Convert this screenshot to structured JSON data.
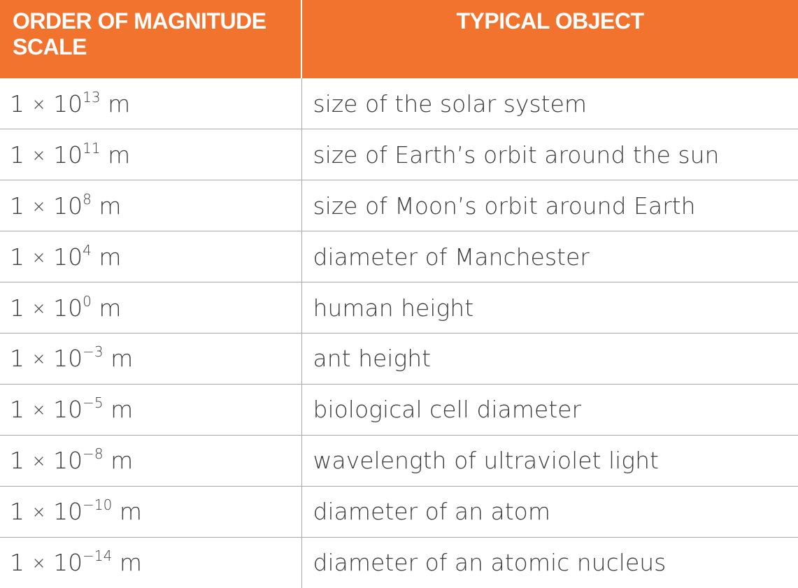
{
  "table": {
    "headers": [
      "ORDER OF MAGNITUDE SCALE",
      "TYPICAL OBJECT"
    ],
    "rows": [
      {
        "coefficient": "1",
        "times": "×",
        "base": "10",
        "exponent": "13",
        "unit": "m",
        "object": "size of the solar system"
      },
      {
        "coefficient": "1",
        "times": "×",
        "base": "10",
        "exponent": "11",
        "unit": "m",
        "object": "size of Earth’s orbit around the sun"
      },
      {
        "coefficient": "1",
        "times": "×",
        "base": "10",
        "exponent": "8",
        "unit": "m",
        "object": "size of Moon’s orbit around Earth"
      },
      {
        "coefficient": "1",
        "times": "×",
        "base": "10",
        "exponent": "4",
        "unit": "m",
        "object": "diameter of Manchester"
      },
      {
        "coefficient": "1",
        "times": "×",
        "base": "10",
        "exponent": "0",
        "unit": "m",
        "object": "human height"
      },
      {
        "coefficient": "1",
        "times": "×",
        "base": "10",
        "exponent": "−3",
        "unit": "m",
        "object": "ant height"
      },
      {
        "coefficient": "1",
        "times": "×",
        "base": "10",
        "exponent": "−5",
        "unit": "m",
        "object": "biological cell diameter"
      },
      {
        "coefficient": "1",
        "times": "×",
        "base": "10",
        "exponent": "−8",
        "unit": "m",
        "object": "wavelength of ultraviolet light"
      },
      {
        "coefficient": "1",
        "times": "×",
        "base": "10",
        "exponent": "−10",
        "unit": "m",
        "object": "diameter of an atom"
      },
      {
        "coefficient": "1",
        "times": "×",
        "base": "10",
        "exponent": "−14",
        "unit": "m",
        "object": "diameter of an atomic nucleus"
      }
    ]
  },
  "colors": {
    "header_background": "#F1732D",
    "header_text": "#FFFFFF",
    "body_text": "#3D3D3D",
    "grid_lines": "#A8A8A8"
  }
}
